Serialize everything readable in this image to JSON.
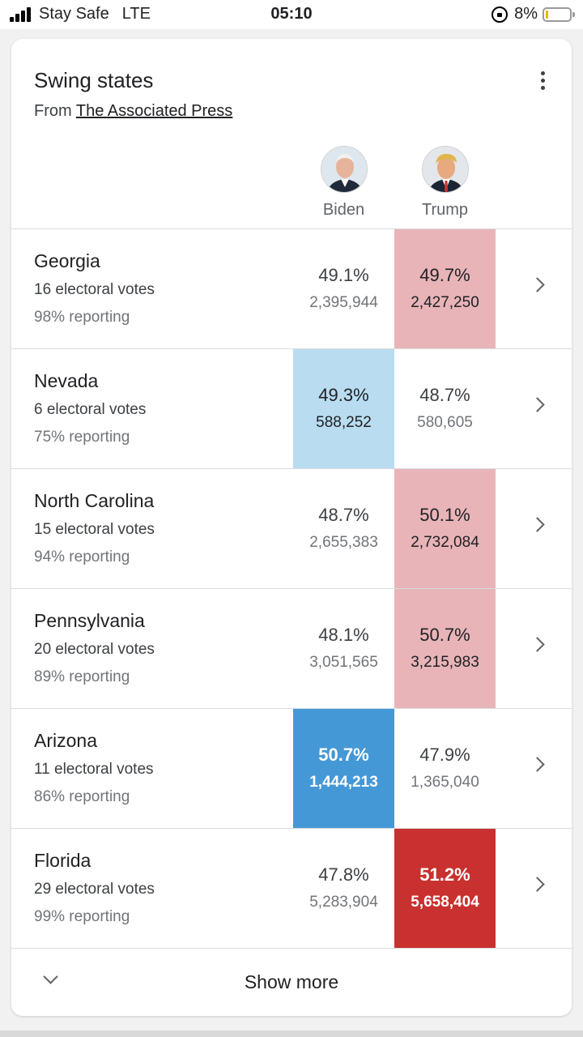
{
  "status_bar": {
    "carrier": "Stay Safe",
    "network": "LTE",
    "time": "05:10",
    "battery": "8%",
    "battery_level": 0.08
  },
  "card": {
    "title": "Swing states",
    "source_prefix": "From",
    "source_name": "The Associated Press"
  },
  "candidates": [
    {
      "name": "Biden",
      "color": "#4598d6"
    },
    {
      "name": "Trump",
      "color": "#c8312f"
    }
  ],
  "states": [
    {
      "name": "Georgia",
      "electoral": "16 electoral votes",
      "reporting": "98% reporting",
      "biden_pct": "49.1%",
      "biden_votes": "2,395,944",
      "trump_pct": "49.7%",
      "trump_votes": "2,427,250"
    },
    {
      "name": "Nevada",
      "electoral": "6 electoral votes",
      "reporting": "75% reporting",
      "biden_pct": "49.3%",
      "biden_votes": "588,252",
      "trump_pct": "48.7%",
      "trump_votes": "580,605"
    },
    {
      "name": "North Carolina",
      "electoral": "15 electoral votes",
      "reporting": "94% reporting",
      "biden_pct": "48.7%",
      "biden_votes": "2,655,383",
      "trump_pct": "50.1%",
      "trump_votes": "2,732,084"
    },
    {
      "name": "Pennsylvania",
      "electoral": "20 electoral votes",
      "reporting": "89% reporting",
      "biden_pct": "48.1%",
      "biden_votes": "3,051,565",
      "trump_pct": "50.7%",
      "trump_votes": "3,215,983"
    },
    {
      "name": "Arizona",
      "electoral": "11 electoral votes",
      "reporting": "86% reporting",
      "biden_pct": "50.7%",
      "biden_votes": "1,444,213",
      "trump_pct": "47.9%",
      "trump_votes": "1,365,040"
    },
    {
      "name": "Florida",
      "electoral": "29 electoral votes",
      "reporting": "99% reporting",
      "biden_pct": "47.8%",
      "biden_votes": "5,283,904",
      "trump_pct": "51.2%",
      "trump_votes": "5,658,404"
    }
  ],
  "footer": {
    "show_more": "Show more"
  }
}
